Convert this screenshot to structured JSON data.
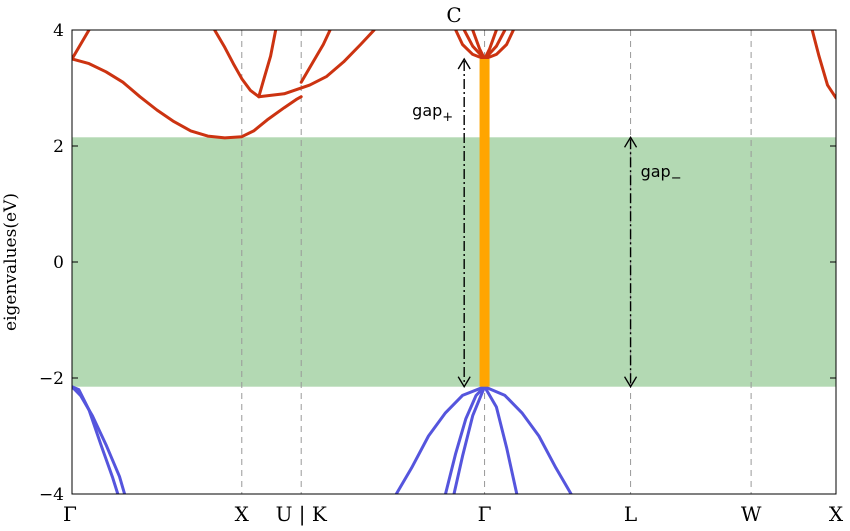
{
  "chart_data": {
    "type": "line",
    "title": "C",
    "ylabel": "eigenvalues(eV)",
    "xlabel": "",
    "ylim": [
      -4,
      4
    ],
    "yticks": [
      -4,
      -2,
      0,
      2,
      4
    ],
    "ytick_labels": [
      "−4",
      "−2",
      "0",
      "2",
      "4"
    ],
    "kpath": [
      {
        "label": "Γ",
        "k": 0.0
      },
      {
        "label": "X",
        "k": 1.0
      },
      {
        "label": "U | K",
        "k": 1.35
      },
      {
        "label": "Γ",
        "k": 2.43
      },
      {
        "label": "L",
        "k": 3.29
      },
      {
        "label": "W",
        "k": 4.0
      },
      {
        "label": "X",
        "k": 4.5
      }
    ],
    "gap_region": {
      "ymin": -2.15,
      "ymax": 2.15,
      "color": "#b3d9b3"
    },
    "direct_gap_bar": {
      "k": 2.43,
      "ymin": -2.15,
      "ymax": 3.5,
      "color": "#ffa500"
    },
    "annotations": [
      {
        "text": "gap",
        "subscript": "+",
        "k": 2.31,
        "y_from": -2.15,
        "y_to": 3.5
      },
      {
        "text": "gap",
        "subscript": "−",
        "k": 3.29,
        "y_from": -2.15,
        "y_to": 2.15
      }
    ],
    "series": [
      {
        "band": "conduction",
        "color": "#cc3311",
        "points": [
          [
            0.0,
            3.5
          ],
          [
            0.05,
            3.75
          ],
          [
            0.1,
            4.0
          ]
        ]
      },
      {
        "band": "conduction",
        "color": "#cc3311",
        "points": [
          [
            0.0,
            3.5
          ],
          [
            0.1,
            3.42
          ],
          [
            0.2,
            3.28
          ],
          [
            0.3,
            3.1
          ],
          [
            0.4,
            2.85
          ],
          [
            0.5,
            2.62
          ],
          [
            0.6,
            2.42
          ],
          [
            0.7,
            2.26
          ],
          [
            0.8,
            2.17
          ],
          [
            0.9,
            2.14
          ],
          [
            1.0,
            2.16
          ],
          [
            1.07,
            2.26
          ],
          [
            1.15,
            2.45
          ],
          [
            1.25,
            2.66
          ],
          [
            1.32,
            2.8
          ],
          [
            1.35,
            2.85
          ]
        ]
      },
      {
        "band": "conduction",
        "color": "#cc3311",
        "points": [
          [
            0.84,
            4.0
          ],
          [
            0.9,
            3.7
          ],
          [
            0.95,
            3.42
          ],
          [
            1.0,
            3.16
          ],
          [
            1.05,
            2.96
          ],
          [
            1.1,
            2.85
          ]
        ]
      },
      {
        "band": "conduction",
        "color": "#cc3311",
        "points": [
          [
            1.1,
            2.85
          ],
          [
            1.13,
            3.15
          ],
          [
            1.17,
            3.55
          ],
          [
            1.2,
            4.0
          ]
        ]
      },
      {
        "band": "conduction",
        "color": "#cc3311",
        "points": [
          [
            1.1,
            2.85
          ],
          [
            1.25,
            2.9
          ],
          [
            1.4,
            3.05
          ],
          [
            1.5,
            3.2
          ],
          [
            1.6,
            3.45
          ],
          [
            1.7,
            3.75
          ],
          [
            1.78,
            4.0
          ]
        ]
      },
      {
        "band": "conduction",
        "color": "#cc3311",
        "points": [
          [
            1.35,
            3.1
          ],
          [
            1.42,
            3.45
          ],
          [
            1.48,
            3.75
          ],
          [
            1.52,
            4.0
          ]
        ]
      },
      {
        "band": "conduction",
        "color": "#cc3311",
        "points": [
          [
            2.26,
            4.0
          ],
          [
            2.3,
            3.75
          ],
          [
            2.36,
            3.58
          ],
          [
            2.43,
            3.5
          ],
          [
            2.5,
            3.58
          ],
          [
            2.56,
            3.75
          ],
          [
            2.6,
            4.0
          ]
        ]
      },
      {
        "band": "conduction",
        "color": "#cc3311",
        "points": [
          [
            2.31,
            4.0
          ],
          [
            2.36,
            3.72
          ],
          [
            2.43,
            3.5
          ],
          [
            2.5,
            3.72
          ],
          [
            2.55,
            4.0
          ]
        ]
      },
      {
        "band": "conduction",
        "color": "#cc3311",
        "points": [
          [
            2.36,
            4.0
          ],
          [
            2.4,
            3.68
          ],
          [
            2.43,
            3.5
          ],
          [
            2.46,
            3.68
          ],
          [
            2.5,
            4.0
          ]
        ]
      },
      {
        "band": "conduction",
        "color": "#cc3311",
        "points": [
          [
            4.36,
            4.0
          ],
          [
            4.4,
            3.55
          ],
          [
            4.45,
            3.05
          ],
          [
            4.5,
            2.83
          ]
        ]
      },
      {
        "band": "valence",
        "color": "#5555dd",
        "points": [
          [
            0.0,
            -2.15
          ],
          [
            0.05,
            -2.3
          ],
          [
            0.12,
            -2.65
          ],
          [
            0.2,
            -3.15
          ],
          [
            0.28,
            -3.7
          ],
          [
            0.31,
            -4.0
          ]
        ]
      },
      {
        "band": "valence",
        "color": "#5555dd",
        "points": [
          [
            0.0,
            -2.15
          ],
          [
            0.04,
            -2.2
          ],
          [
            0.1,
            -2.55
          ],
          [
            0.17,
            -3.15
          ],
          [
            0.24,
            -3.72
          ],
          [
            0.27,
            -4.0
          ]
        ]
      },
      {
        "band": "valence",
        "color": "#5555dd",
        "points": [
          [
            1.91,
            -4.0
          ],
          [
            2.0,
            -3.55
          ],
          [
            2.1,
            -3.0
          ],
          [
            2.2,
            -2.6
          ],
          [
            2.3,
            -2.3
          ],
          [
            2.43,
            -2.15
          ],
          [
            2.55,
            -2.3
          ],
          [
            2.65,
            -2.6
          ],
          [
            2.75,
            -3.0
          ],
          [
            2.85,
            -3.55
          ],
          [
            2.94,
            -4.0
          ]
        ]
      },
      {
        "band": "valence",
        "color": "#5555dd",
        "points": [
          [
            2.2,
            -4.0
          ],
          [
            2.26,
            -3.3
          ],
          [
            2.32,
            -2.7
          ],
          [
            2.38,
            -2.3
          ],
          [
            2.43,
            -2.15
          ],
          [
            2.5,
            -2.5
          ],
          [
            2.56,
            -3.2
          ],
          [
            2.62,
            -4.0
          ]
        ]
      },
      {
        "band": "valence",
        "color": "#5555dd",
        "points": [
          [
            2.25,
            -4.0
          ],
          [
            2.3,
            -3.35
          ],
          [
            2.36,
            -2.65
          ],
          [
            2.43,
            -2.15
          ]
        ]
      }
    ]
  }
}
